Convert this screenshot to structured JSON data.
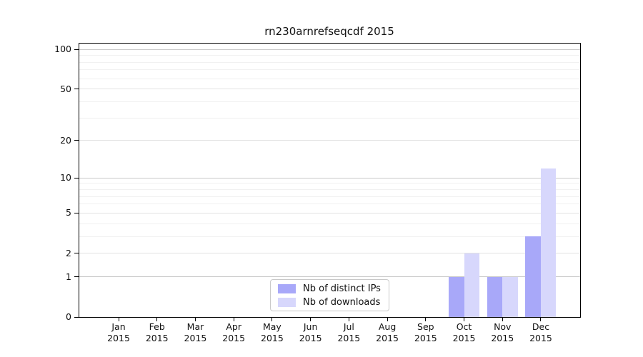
{
  "chart_data": {
    "type": "bar",
    "title": "rn230arnrefseqcdf 2015",
    "x_year": "2015",
    "categories": [
      "Jan",
      "Feb",
      "Mar",
      "Apr",
      "May",
      "Jun",
      "Jul",
      "Aug",
      "Sep",
      "Oct",
      "Nov",
      "Dec"
    ],
    "series": [
      {
        "name": "Nb of distinct IPs",
        "color": "#a8a8f9",
        "values": [
          0,
          0,
          0,
          0,
          0,
          0,
          0,
          0,
          0,
          1,
          1,
          3
        ]
      },
      {
        "name": "Nb of downloads",
        "color": "#d7d7fc",
        "values": [
          0,
          0,
          0,
          0,
          0,
          0,
          0,
          0,
          0,
          2,
          1,
          12
        ]
      }
    ],
    "y_axis": {
      "scale": "log1p",
      "tick_values": [
        0,
        1,
        2,
        5,
        10,
        20,
        50,
        100
      ],
      "min": 0,
      "max": 112
    },
    "gridlines": {
      "decade": [
        1,
        10,
        100
      ],
      "submajor": [
        2,
        5,
        20,
        50
      ],
      "minor": [
        3,
        4,
        6,
        7,
        8,
        9,
        30,
        40,
        60,
        70,
        80,
        90
      ]
    },
    "legend": {
      "position": "lower center inside"
    },
    "colors": {
      "spine": "#000000",
      "text": "#111111"
    }
  }
}
